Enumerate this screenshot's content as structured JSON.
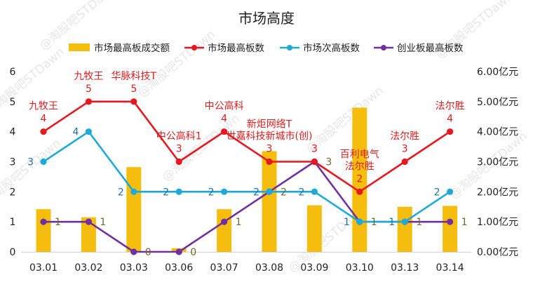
{
  "chart_data": {
    "type": "bar+line",
    "title": "市场高度",
    "watermark": "@淘股吧STDawn",
    "categories": [
      "03.01",
      "03.02",
      "03.03",
      "03.06",
      "03.07",
      "03.08",
      "03.09",
      "03.10",
      "03.13",
      "03.14"
    ],
    "left_axis": {
      "min": 0,
      "max": 6,
      "ticks": [
        "0",
        "1",
        "2",
        "3",
        "4",
        "5",
        "6"
      ]
    },
    "right_axis": {
      "min": 0,
      "max": 6,
      "ticks": [
        "0.00亿元",
        "1.00亿元",
        "2.00亿元",
        "3.00亿元",
        "4.00亿元",
        "5.00亿元",
        "6.00亿元"
      ]
    },
    "bars": {
      "name": "市场最高板成交额",
      "color": "#F5BE0F",
      "values": [
        1.42,
        1.15,
        2.82,
        0.12,
        1.42,
        3.35,
        1.55,
        4.8,
        1.5,
        1.53
      ]
    },
    "series": [
      {
        "name": "市场最高板数",
        "color": "#E4181E",
        "values": [
          4,
          5,
          5,
          3,
          4,
          3,
          3,
          2,
          3,
          4
        ],
        "labels": [
          "4",
          "5",
          "5",
          "3",
          "4",
          "3",
          "3",
          "2",
          "3",
          "4"
        ],
        "stock_names": [
          [
            "九牧王"
          ],
          [
            "九牧王"
          ],
          [
            "华脉科技T"
          ],
          [
            "中公高科1"
          ],
          [
            "中公高科"
          ],
          [
            "新炬网络T",
            "世嘉科技新城市(创)"
          ],
          [],
          [
            "百利电气",
            "法尔胜"
          ],
          [
            "法尔胜"
          ],
          [
            "法尔胜"
          ]
        ]
      },
      {
        "name": "市场次高板数",
        "color": "#1FA9D9",
        "values": [
          3,
          4,
          2,
          2,
          2,
          2,
          2,
          1,
          1,
          2
        ],
        "labels": [
          "3",
          "4",
          "2",
          "2",
          "2",
          "2",
          "2",
          "1",
          "1",
          "2"
        ]
      },
      {
        "name": "创业板最高板数",
        "color": "#7030A0",
        "values": [
          1,
          1,
          0,
          0,
          1,
          2,
          3,
          1,
          1,
          1
        ],
        "labels": [
          "1",
          "1",
          "0",
          "0",
          "1",
          "2",
          "3",
          "1",
          "1",
          "1"
        ]
      }
    ]
  }
}
